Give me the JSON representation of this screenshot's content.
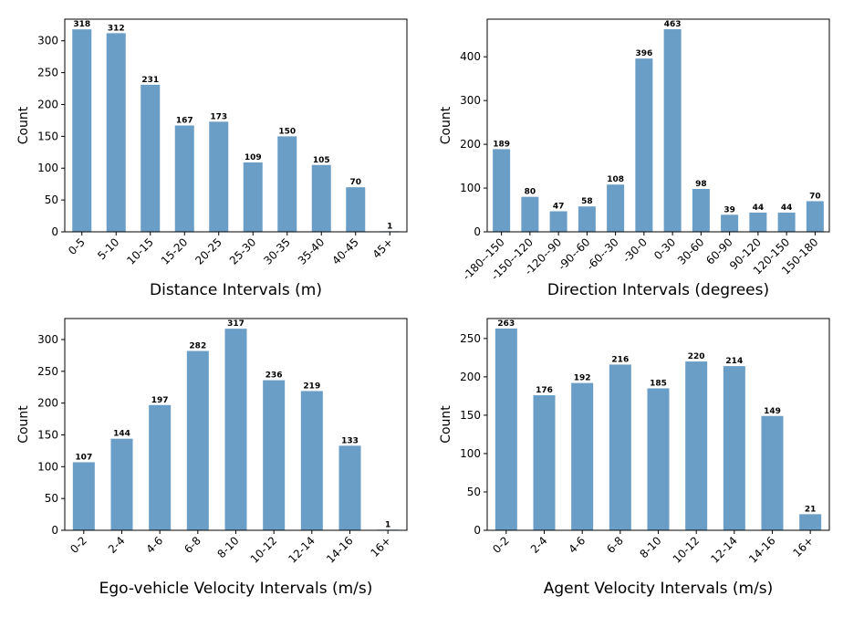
{
  "chart_data": [
    {
      "type": "bar",
      "title": "",
      "xlabel": "Distance Intervals (m)",
      "ylabel": "Count",
      "categories": [
        "0-5",
        "5-10",
        "10-15",
        "15-20",
        "20-25",
        "25-30",
        "30-35",
        "35-40",
        "40-45",
        "45+"
      ],
      "values": [
        318,
        312,
        231,
        167,
        173,
        109,
        150,
        105,
        70,
        1
      ],
      "ylim": [
        0,
        334
      ],
      "yticks": [
        0,
        50,
        100,
        150,
        200,
        250,
        300
      ],
      "color": "#6b9ec7",
      "grid": false
    },
    {
      "type": "bar",
      "title": "",
      "xlabel": "Direction Intervals (degrees)",
      "ylabel": "Count",
      "categories": [
        "-180--150",
        "-150--120",
        "-120--90",
        "-90--60",
        "-60--30",
        "-30-0",
        "0-30",
        "30-60",
        "60-90",
        "90-120",
        "120-150",
        "150-180"
      ],
      "values": [
        189,
        80,
        47,
        58,
        108,
        396,
        463,
        98,
        39,
        44,
        44,
        70
      ],
      "ylim": [
        0,
        486
      ],
      "yticks": [
        0,
        100,
        200,
        300,
        400
      ],
      "color": "#6b9ec7",
      "grid": false
    },
    {
      "type": "bar",
      "title": "",
      "xlabel": "Ego-vehicle Velocity Intervals (m/s)",
      "ylabel": "Count",
      "categories": [
        "0-2",
        "2-4",
        "4-6",
        "6-8",
        "8-10",
        "10-12",
        "12-14",
        "14-16",
        "16+"
      ],
      "values": [
        107,
        144,
        197,
        282,
        317,
        236,
        219,
        133,
        1
      ],
      "ylim": [
        0,
        333
      ],
      "yticks": [
        0,
        50,
        100,
        150,
        200,
        250,
        300
      ],
      "color": "#6b9ec7",
      "grid": false
    },
    {
      "type": "bar",
      "title": "",
      "xlabel": "Agent Velocity Intervals (m/s)",
      "ylabel": "Count",
      "categories": [
        "0-2",
        "2-4",
        "4-6",
        "6-8",
        "8-10",
        "10-12",
        "12-14",
        "14-16",
        "16+"
      ],
      "values": [
        263,
        176,
        192,
        216,
        185,
        220,
        214,
        149,
        21
      ],
      "ylim": [
        0,
        276
      ],
      "yticks": [
        0,
        50,
        100,
        150,
        200,
        250
      ],
      "color": "#6b9ec7",
      "grid": false
    }
  ]
}
